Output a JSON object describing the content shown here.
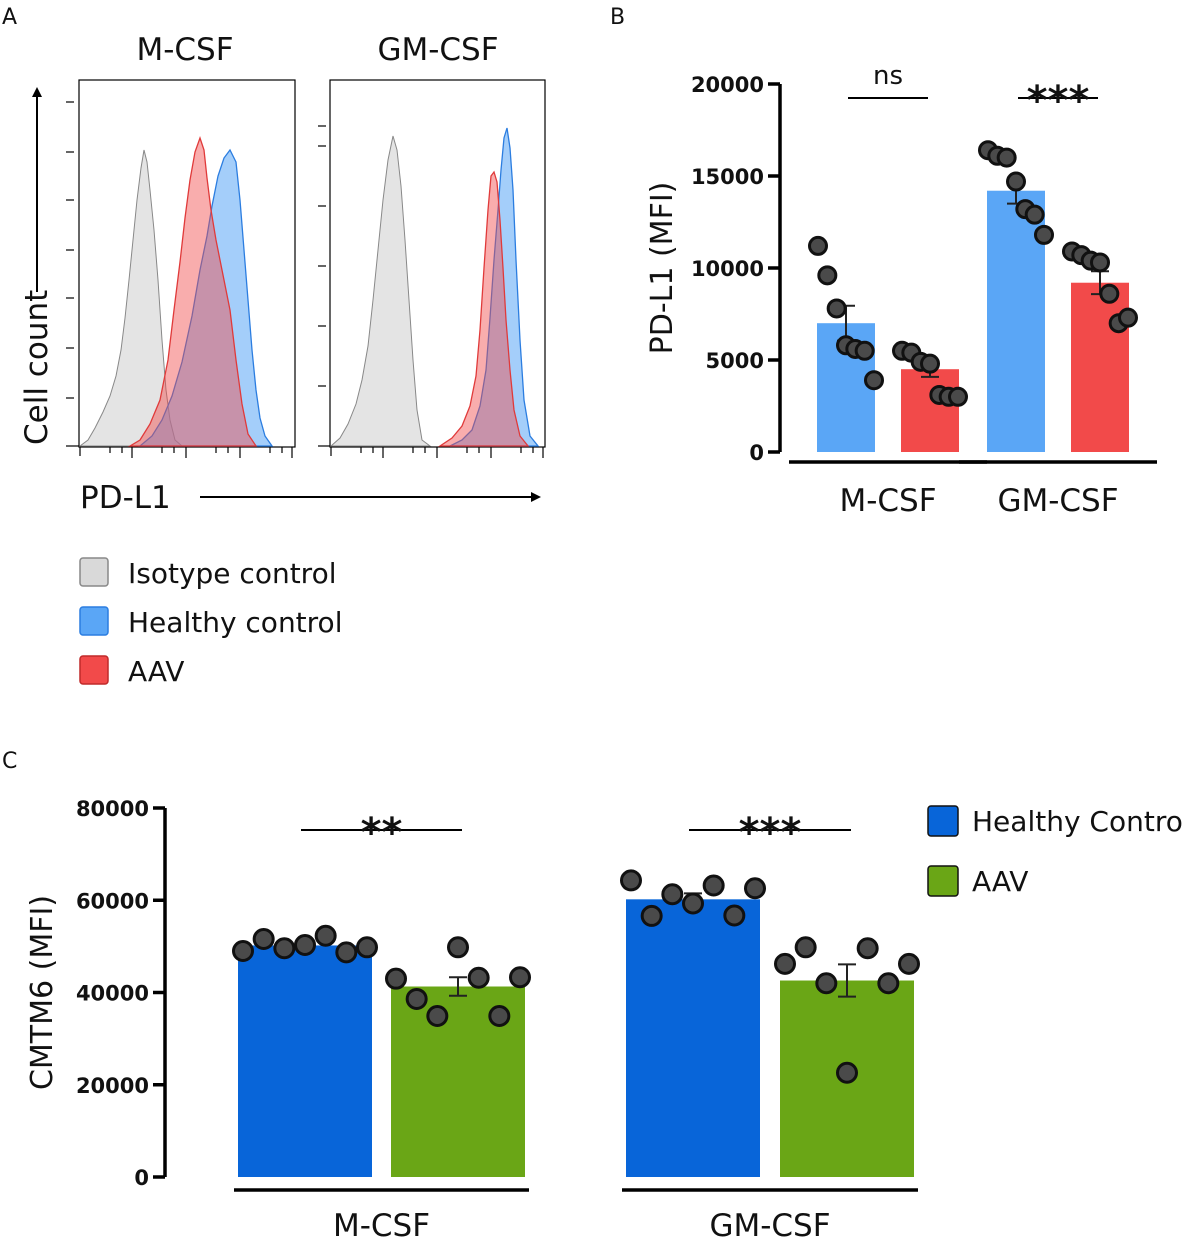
{
  "panels": {
    "a_label": "A",
    "b_label": "B",
    "c_label": "C"
  },
  "histogram": {
    "panel_titles": [
      "M-CSF",
      "GM-CSF"
    ],
    "x_axis_label": "PD-L1",
    "y_axis_label": "Cell count",
    "legend": [
      {
        "name": "Isotype control",
        "color": "#d9d9d9"
      },
      {
        "name": "Healthy control",
        "color": "#5aa6f6"
      },
      {
        "name": "AAV",
        "color": "#f24a4a"
      }
    ]
  },
  "chart_data": [
    {
      "type": "bar",
      "id": "B",
      "ylabel": "PD-L1 (MFI)",
      "xlabel": "",
      "ylim": [
        0,
        20000
      ],
      "yticks": [
        0,
        5000,
        10000,
        15000,
        20000
      ],
      "groups": [
        "M-CSF",
        "GM-CSF"
      ],
      "series": [
        {
          "name": "Healthy control",
          "color": "#5aa6f6",
          "values": [
            7000,
            14200
          ],
          "sem": [
            950,
            700
          ],
          "points": [
            [
              11200,
              9600,
              7800,
              5800,
              5600,
              5500,
              3900
            ],
            [
              16400,
              16100,
              16000,
              14700,
              13200,
              12900,
              11800
            ]
          ]
        },
        {
          "name": "AAV",
          "color": "#f24a4a",
          "values": [
            4500,
            9200
          ],
          "sem": [
            420,
            620
          ],
          "points": [
            [
              5500,
              5400,
              4900,
              4800,
              3100,
              3000,
              3000
            ],
            [
              10900,
              10700,
              10400,
              10300,
              8600,
              7000,
              7300
            ]
          ]
        }
      ],
      "significance": [
        "ns",
        "***"
      ]
    },
    {
      "type": "bar",
      "id": "C",
      "ylabel": "CMTM6 (MFI)",
      "xlabel": "",
      "ylim": [
        0,
        80000
      ],
      "yticks": [
        0,
        20000,
        40000,
        60000,
        80000
      ],
      "groups": [
        "M-CSF",
        "GM-CSF"
      ],
      "series": [
        {
          "name": "Healthy Control",
          "color": "#0865d9",
          "values": [
            50200,
            60200
          ],
          "sem": [
            500,
            1300
          ],
          "points": [
            [
              49000,
              51600,
              49600,
              50300,
              52300,
              48700,
              49800
            ],
            [
              64300,
              56600,
              61300,
              59300,
              63200,
              56700,
              62600
            ]
          ]
        },
        {
          "name": "AAV",
          "color": "#6aa616",
          "values": [
            41300,
            42600
          ],
          "sem": [
            2000,
            3500
          ],
          "points": [
            [
              43000,
              38600,
              34900,
              49800,
              43200,
              34900,
              43300
            ],
            [
              46200,
              49800,
              42000,
              22600,
              49600,
              42000,
              46200
            ]
          ]
        }
      ],
      "significance": [
        "**",
        "***"
      ]
    }
  ]
}
